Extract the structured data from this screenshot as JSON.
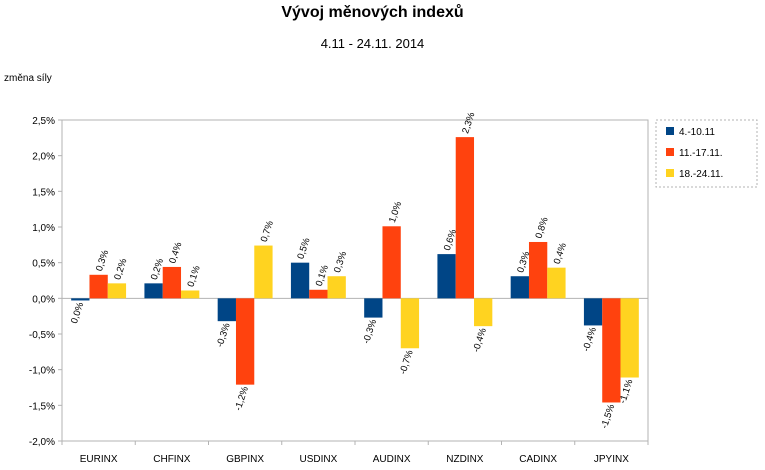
{
  "chart_data": {
    "type": "bar",
    "title": "Vývoj měnových indexů",
    "subtitle": "4.11 - 24.11. 2014",
    "ylabel": "změna síly",
    "xlabel": "",
    "ylim": [
      -2.0,
      2.5
    ],
    "yticks": [
      2.5,
      2.0,
      1.5,
      1.0,
      0.5,
      0.0,
      -0.5,
      -1.0,
      -1.5,
      -2.0
    ],
    "ytick_labels": [
      "2,5%",
      "2,0%",
      "1,5%",
      "1,0%",
      "0,5%",
      "0,0%",
      "-0,5%",
      "-1,0%",
      "-1,5%",
      "-2,0%"
    ],
    "categories": [
      "EURINX",
      "CHFINX",
      "GBPINX",
      "USDINX",
      "AUDINX",
      "NZDINX",
      "CADINX",
      "JPYINX"
    ],
    "series": [
      {
        "name": "4.-10.11",
        "color": "#004586",
        "values": [
          -0.03,
          0.21,
          -0.32,
          0.5,
          -0.27,
          0.62,
          0.31,
          -0.38
        ],
        "labels": [
          "0,0%",
          "0,2%",
          "-0,3%",
          "0,5%",
          "-0,3%",
          "0,6%",
          "0,3%",
          "-0,4%"
        ]
      },
      {
        "name": "11.-17.11.",
        "color": "#ff420e",
        "values": [
          0.33,
          0.44,
          -1.21,
          0.12,
          1.01,
          2.26,
          0.79,
          -1.46
        ],
        "labels": [
          "0,3%",
          "0,4%",
          "-1,2%",
          "0,1%",
          "1,0%",
          "2,3%",
          "0,8%",
          "-1,5%"
        ]
      },
      {
        "name": "18.-24.11.",
        "color": "#ffd320",
        "values": [
          0.21,
          0.11,
          0.74,
          0.31,
          -0.7,
          -0.39,
          0.43,
          -1.11
        ],
        "labels": [
          "0,2%",
          "0,1%",
          "0,7%",
          "0,3%",
          "-0,7%",
          "-0,4%",
          "0,4%",
          "-1,1%"
        ]
      }
    ],
    "grid": false,
    "legend": "right"
  }
}
